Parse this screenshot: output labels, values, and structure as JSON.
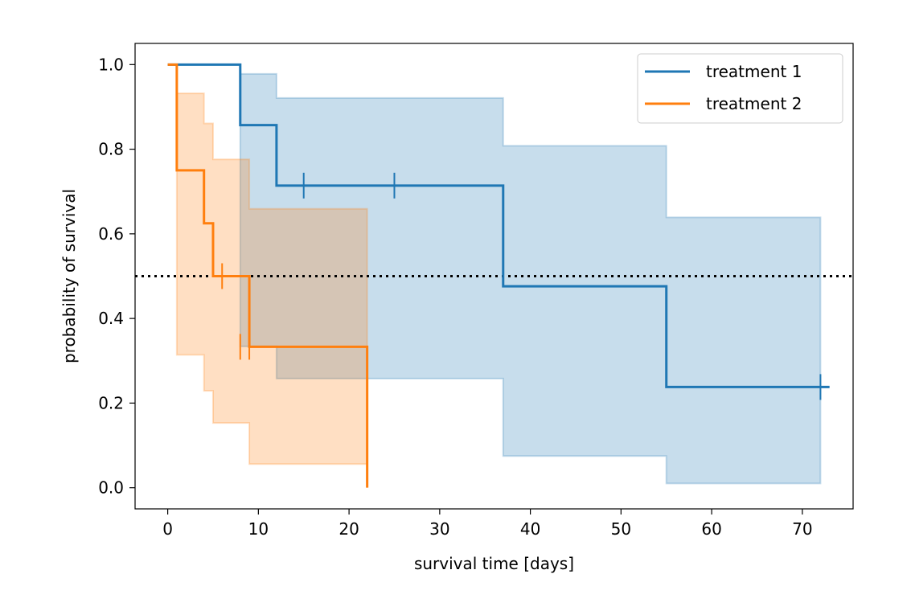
{
  "chart_data": {
    "type": "line",
    "subtype": "kaplan-meier-step",
    "title": "",
    "xlabel": "survival time [days]",
    "ylabel": "probability of survival",
    "xlim": [
      -3.6,
      75.6
    ],
    "ylim": [
      -0.05,
      1.05
    ],
    "xticks": [
      0,
      10,
      20,
      30,
      40,
      50,
      60,
      70
    ],
    "yticks": [
      0.0,
      0.2,
      0.4,
      0.6,
      0.8,
      1.0
    ],
    "xtick_labels": [
      "0",
      "10",
      "20",
      "30",
      "40",
      "50",
      "60",
      "70"
    ],
    "ytick_labels": [
      "0.0",
      "0.2",
      "0.4",
      "0.6",
      "0.8",
      "1.0"
    ],
    "reference_line": {
      "y": 0.5,
      "style": "dotted",
      "color": "#000000"
    },
    "legend": {
      "position": "top-right"
    },
    "series": [
      {
        "name": "treatment 1",
        "color": "#1f77b4",
        "steps": [
          [
            0,
            1.0
          ],
          [
            8,
            0.857
          ],
          [
            12,
            0.714
          ],
          [
            37,
            0.476
          ],
          [
            55,
            0.238
          ],
          [
            73,
            0.238
          ]
        ],
        "ci_lower": [
          [
            8,
            0.334
          ],
          [
            12,
            0.258
          ],
          [
            37,
            0.075
          ],
          [
            55,
            0.01
          ],
          [
            72,
            0.01
          ]
        ],
        "ci_upper": [
          [
            8,
            0.978
          ],
          [
            12,
            0.921
          ],
          [
            37,
            0.808
          ],
          [
            55,
            0.639
          ],
          [
            72,
            0.639
          ]
        ],
        "censored": [
          [
            15,
            0.714
          ],
          [
            25,
            0.714
          ],
          [
            72,
            0.238
          ]
        ]
      },
      {
        "name": "treatment 2",
        "color": "#ff7f0e",
        "steps": [
          [
            0,
            1.0
          ],
          [
            1,
            0.75
          ],
          [
            4,
            0.625
          ],
          [
            5,
            0.5
          ],
          [
            9,
            0.333
          ],
          [
            22,
            0.0
          ]
        ],
        "ci_lower": [
          [
            1,
            0.314
          ],
          [
            4,
            0.229
          ],
          [
            5,
            0.153
          ],
          [
            9,
            0.056
          ],
          [
            22,
            0.056
          ]
        ],
        "ci_upper": [
          [
            1,
            0.932
          ],
          [
            4,
            0.861
          ],
          [
            5,
            0.776
          ],
          [
            9,
            0.659
          ],
          [
            22,
            0.659
          ]
        ],
        "censored": [
          [
            6,
            0.5
          ],
          [
            8,
            0.333
          ],
          [
            9,
            0.333
          ]
        ]
      }
    ]
  }
}
